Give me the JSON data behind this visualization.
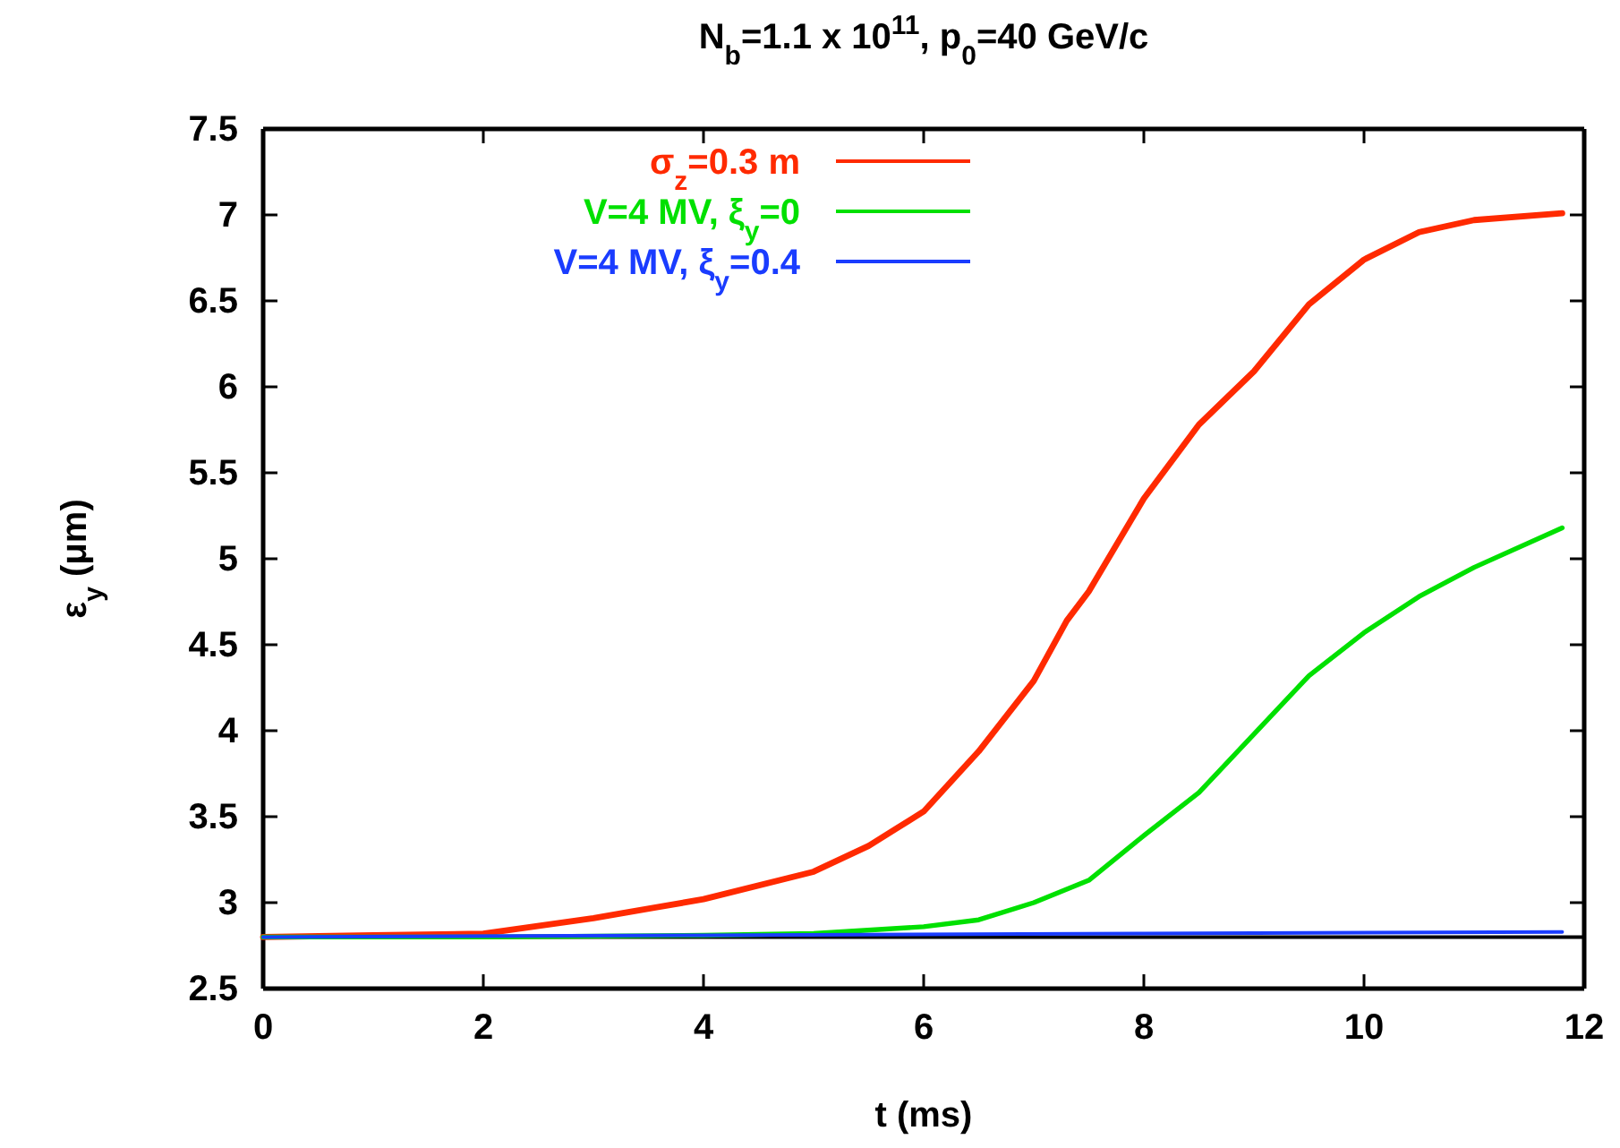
{
  "chart_data": {
    "type": "line",
    "title": "N$_{b}$=1.1 x 10$^{11}$, p$_{0}$=40 GeV/c",
    "xlabel": "t (ms)",
    "ylabel": "ε$_{y}$ (μm)",
    "xlim": [
      0,
      12
    ],
    "xticks": [
      0,
      2,
      4,
      6,
      8,
      10,
      12
    ],
    "ylim": [
      2.5,
      7.5
    ],
    "yticks": [
      2.5,
      3,
      3.5,
      4,
      4.5,
      5,
      5.5,
      6,
      6.5,
      7,
      7.5
    ],
    "grid": false,
    "legend": "top left",
    "line_style": "solid",
    "marker": "none",
    "ref_lines": [
      {
        "axis": "y",
        "value": 2.8,
        "color": "#000000"
      }
    ],
    "series": [
      {
        "name": "σ$_{z}$=0.3 m",
        "color": "#ff2a00",
        "x": [
          0,
          1,
          2,
          3,
          4,
          5,
          5.5,
          5.75,
          6,
          6.5,
          7,
          7.3,
          7.5,
          8,
          8.5,
          9,
          9.5,
          10,
          10.5,
          11,
          11.8
        ],
        "values": [
          2.8,
          2.81,
          2.82,
          2.91,
          3.02,
          3.18,
          3.33,
          3.43,
          3.53,
          3.88,
          4.29,
          4.64,
          4.81,
          5.35,
          5.78,
          6.09,
          6.48,
          6.74,
          6.9,
          6.97,
          7.01
        ]
      },
      {
        "name": "V=4 MV, ξ$_{y}$=0",
        "color": "#00e000",
        "x": [
          0,
          2,
          4,
          5,
          6,
          6.5,
          7,
          7.5,
          8,
          8.5,
          9,
          9.5,
          10,
          10.5,
          11,
          11.8
        ],
        "values": [
          2.8,
          2.8,
          2.81,
          2.82,
          2.86,
          2.9,
          3.0,
          3.13,
          3.39,
          3.64,
          3.98,
          4.32,
          4.57,
          4.78,
          4.95,
          5.18
        ]
      },
      {
        "name": "V=4 MV, ξ$_{y}$=0.4",
        "color": "#1a3cff",
        "x": [
          0,
          4,
          8,
          11.8
        ],
        "values": [
          2.8,
          2.81,
          2.82,
          2.83
        ]
      }
    ]
  }
}
